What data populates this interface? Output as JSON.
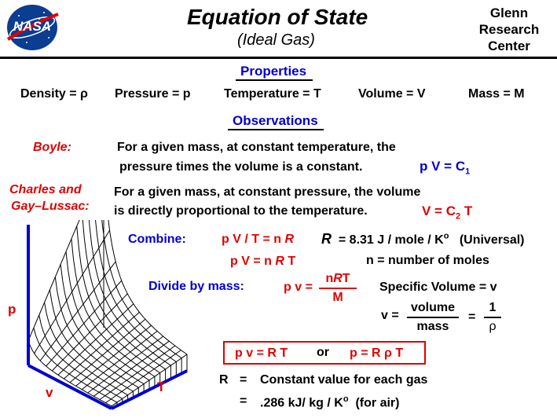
{
  "header": {
    "logo_text": "NASA",
    "title": "Equation  of  State",
    "subtitle": "(Ideal  Gas)",
    "org_line1": "Glenn",
    "org_line2": "Research",
    "org_line3": "Center"
  },
  "properties": {
    "heading": "Properties",
    "items": [
      "Density = ρ",
      "Pressure  = p",
      "Temperature  = T",
      "Volume  = V",
      "Mass = M"
    ]
  },
  "observations": {
    "heading": "Observations",
    "boyle_label": "Boyle:",
    "boyle_line1": "For a given mass, at constant temperature, the",
    "boyle_line2": "pressure times  the volume is  a constant.",
    "boyle_eq_main": "p V  =  C",
    "boyle_eq_sub": "1",
    "charles_label1": "Charles  and",
    "charles_label2": "Gay–Lussac:",
    "charles_line1": "For a given mass, at constant pressure, the  volume",
    "charles_line2": "is  directly  proportional  to  the  temperature.",
    "charles_eq_main": "V = C",
    "charles_eq_sub": "2",
    "charles_eq_end": "T"
  },
  "combine": {
    "label": "Combine:",
    "eq1": "p V / T  = n",
    "eq1_R": "R",
    "r_def_R": "R",
    "r_def": "=  8.31 J / mole / K",
    "r_def_sup": "o",
    "r_def_note": "(Universal)",
    "eq2": "p V  = n",
    "eq2_R": "R",
    "eq2_T": "T",
    "n_def": "n =  number of moles"
  },
  "divide": {
    "label": "Divide  by  mass:",
    "lhs": "p v =",
    "num_n": "n",
    "num_R": "R",
    "num_T": "T",
    "den": "M",
    "spec_vol": "Specific  Volume  = v",
    "v_eq": "v =",
    "v_num": "volume",
    "v_den": "mass",
    "eq_sign": "=",
    "one": "1",
    "rho": "ρ"
  },
  "result": {
    "lhs": "p v = R  T",
    "or": "or",
    "rhs": "p  =  R  ρ T"
  },
  "constant": {
    "r": "R",
    "eq": "=",
    "desc": "Constant  value  for  each gas",
    "eq2": "=",
    "value": ".286  kJ/  kg / K",
    "sup": "o",
    "note": "(for  air)"
  },
  "plot": {
    "axis_p": "p",
    "axis_v": "v",
    "axis_T": "T"
  },
  "colors": {
    "red": "#e00000",
    "blue": "#0000d0",
    "nasa_blue": "#0b3d91"
  }
}
